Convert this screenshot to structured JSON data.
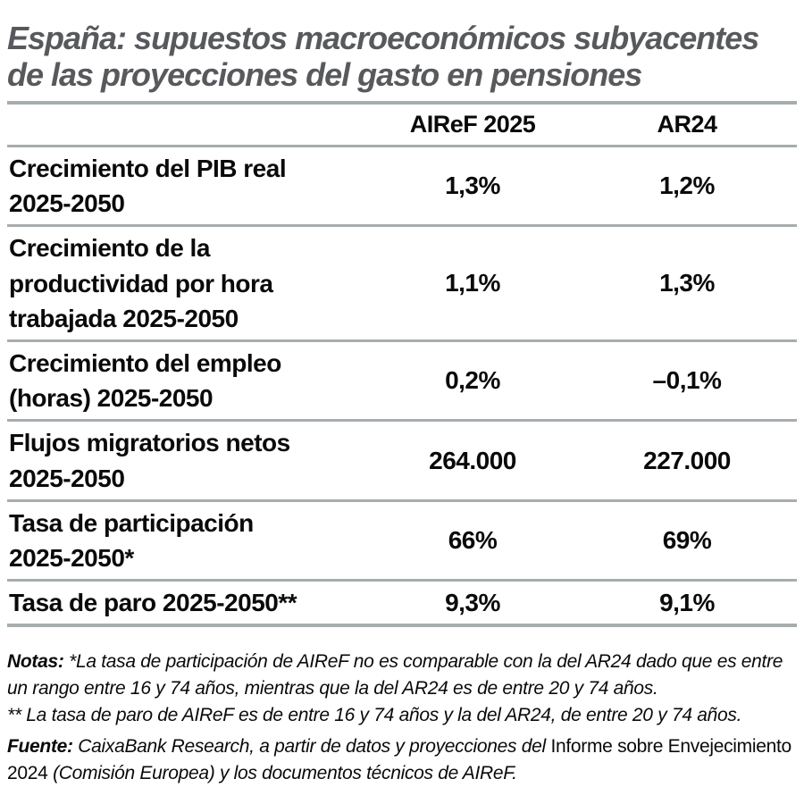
{
  "colors": {
    "background": "#ffffff",
    "title_text": "#58595c",
    "body_text": "#0a0a0a",
    "rule_lines": "#a7adaf"
  },
  "title": "España: supuestos macroeconómicos subyacentes\nde las proyecciones del gasto en pensiones",
  "table": {
    "columns": [
      "AIReF 2025",
      "AR24"
    ],
    "rows": [
      {
        "label": "Crecimiento del PIB real\n2025-2050",
        "airef": "1,3%",
        "ar24": "1,2%"
      },
      {
        "label": "Crecimiento de la\nproductividad por hora\ntrabajada 2025-2050",
        "airef": "1,1%",
        "ar24": "1,3%"
      },
      {
        "label": "Crecimiento del empleo\n(horas) 2025-2050",
        "airef": "0,2%",
        "ar24": "–0,1%"
      },
      {
        "label": "Flujos migratorios netos\n2025-2050",
        "airef": "264.000",
        "ar24": "227.000"
      },
      {
        "label": "Tasa de participación\n2025-2050*",
        "airef": "66%",
        "ar24": "69%"
      },
      {
        "label": "Tasa de paro 2025-2050**",
        "airef": "9,3%",
        "ar24": "9,1%"
      }
    ]
  },
  "notes": {
    "label": "Notas: ",
    "note1": "*La tasa de participación de AIReF no es comparable con la del AR24 dado que es entre un rango entre 16 y 74 años, mientras que la del AR24 es de entre 20 y 74 años.",
    "note2": "** La tasa de paro de AIReF es de entre 16 y 74 años y la del AR24, de entre 20 y 74 años."
  },
  "source": {
    "label": "Fuente: ",
    "part_italic_1": "CaixaBank Research, a partir de datos y proyecciones del ",
    "part_upright": "Informe sobre Envejecimiento 2024 ",
    "part_italic_2": "(Comisión Europea) y los documentos técnicos de AIReF."
  },
  "chart_data": {
    "type": "table",
    "title": "España: supuestos macroeconómicos subyacentes de las proyecciones del gasto en pensiones",
    "columns": [
      "",
      "AIReF 2025",
      "AR24"
    ],
    "rows": [
      [
        "Crecimiento del PIB real 2025-2050",
        "1,3%",
        "1,2%"
      ],
      [
        "Crecimiento de la productividad por hora trabajada 2025-2050",
        "1,1%",
        "1,3%"
      ],
      [
        "Crecimiento del empleo (horas) 2025-2050",
        "0,2%",
        "–0,1%"
      ],
      [
        "Flujos migratorios netos 2025-2050",
        "264.000",
        "227.000"
      ],
      [
        "Tasa de participación 2025-2050*",
        "66%",
        "69%"
      ],
      [
        "Tasa de paro 2025-2050**",
        "9,3%",
        "9,1%"
      ]
    ],
    "notes": "Notas: *La tasa de participación de AIReF no es comparable con la del AR24 dado que es entre un rango entre 16 y 74 años, mientras que la del AR24 es de entre 20 y 74 años. ** La tasa de paro de AIReF es de entre 16 y 74 años y la del AR24, de entre 20 y 74 años.",
    "source": "Fuente: CaixaBank Research, a partir de datos y proyecciones del Informe sobre Envejecimiento 2024 (Comisión Europea) y los documentos técnicos de AIReF."
  }
}
